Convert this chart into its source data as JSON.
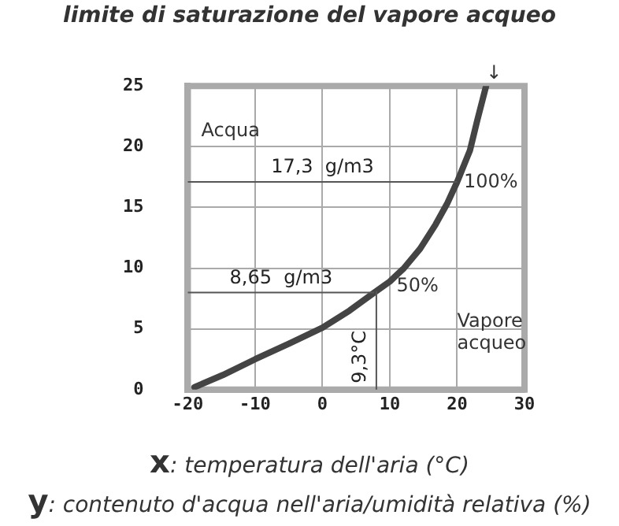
{
  "chart_data": {
    "type": "line",
    "title": "limite di saturazione del vapore acqueo",
    "xlabel": "x: temperatura dell'aria (°C)",
    "ylabel": "y: contenuto d'acqua nell'aria/umidità relativa (%)",
    "x": [
      -19,
      -14.8,
      -10,
      -4.9,
      0,
      4,
      7.7,
      10,
      12.1,
      14.5,
      16.8,
      18.5,
      20,
      21.9,
      23,
      24.3
    ],
    "series": [
      {
        "color": "#444444",
        "values": [
          0.2,
          1.2,
          2.5,
          3.8,
          5.1,
          6.5,
          8.0,
          8.9,
          10,
          11.6,
          13.6,
          15.3,
          17.1,
          19.7,
          22.2,
          25
        ]
      }
    ],
    "xlim": [
      -20,
      30
    ],
    "xticks": [
      -20,
      -10,
      0,
      10,
      20,
      30
    ],
    "ylim": [
      0,
      25
    ],
    "yticks": [
      0,
      5,
      10,
      15,
      20,
      25
    ],
    "grid": true,
    "marker": "none",
    "line_style": "solid",
    "ref_lines": [
      {
        "axis": "y",
        "value": 17.1,
        "label": "17,3  g/m3",
        "color": "#555555"
      },
      {
        "axis": "y",
        "value": 8,
        "label": "8,65  g/m3",
        "color": "#555555"
      },
      {
        "axis": "x",
        "value": 8,
        "label": "9,3°C",
        "color": "#555555"
      }
    ],
    "annotations": [
      "Acqua",
      {
        "text": "100%",
        "x": 21,
        "y": 16.3
      },
      "50%",
      "Vapore acqueo",
      {
        "text": "↓",
        "x": 24.3,
        "y": 25.2
      }
    ]
  }
}
